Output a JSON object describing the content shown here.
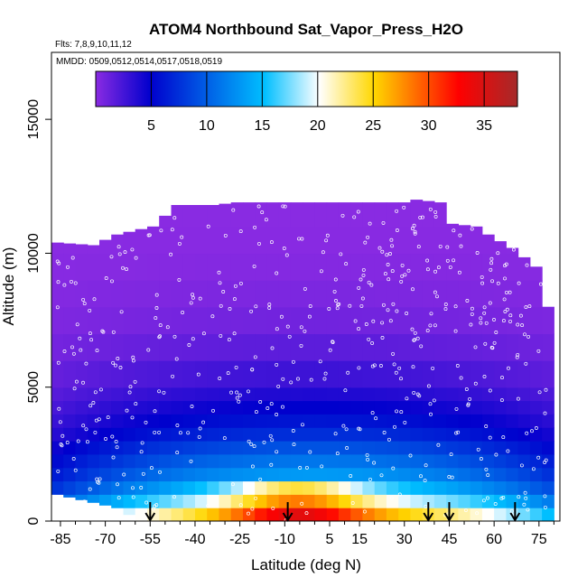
{
  "chart_data": {
    "type": "heatmap",
    "title": "ATOM4 Northbound Sat_Vapor_Press_H2O",
    "annotations": [
      "Flts: 7,8,9,10,11,12",
      "MMDD: 0509,0512,0514,0517,0518,0519"
    ],
    "xlabel": "Latitude (deg N)",
    "ylabel": "Altitude (m)",
    "xlim": [
      -88,
      82
    ],
    "ylim": [
      0,
      17500
    ],
    "x_ticks": [
      -85,
      -70,
      -55,
      -40,
      -25,
      -10,
      5,
      15,
      30,
      45,
      60,
      75
    ],
    "y_ticks": [
      0,
      5000,
      10000,
      15000
    ],
    "grid": false,
    "colorbar": {
      "position": "top-inside",
      "range": [
        0,
        38
      ],
      "ticks": [
        5,
        10,
        15,
        20,
        25,
        30,
        35
      ],
      "colors": [
        "#8a2be2",
        "#0000cd",
        "#00bfff",
        "#ffffff",
        "#ffd700",
        "#ff0000",
        "#a52a2a"
      ]
    },
    "lat_bins": [
      -86,
      -82,
      -78,
      -74,
      -70,
      -66,
      -62,
      -58,
      -54,
      -50,
      -46,
      -42,
      -38,
      -34,
      -30,
      -26,
      -22,
      -18,
      -14,
      -10,
      -6,
      -2,
      2,
      6,
      10,
      14,
      18,
      22,
      26,
      30,
      34,
      38,
      42,
      46,
      50,
      54,
      58,
      62,
      66,
      70,
      74,
      78
    ],
    "alt_bin_edges": [
      0,
      500,
      1000,
      1500,
      2000,
      2500,
      3000,
      3500,
      4000,
      4500,
      5000,
      6000,
      7000,
      8000,
      9000,
      10000,
      11000,
      12000,
      13000
    ],
    "alt_profile": [
      [
        0,
        27
      ],
      [
        500,
        21
      ],
      [
        1000,
        16
      ],
      [
        1500,
        13
      ],
      [
        2000,
        11
      ],
      [
        2500,
        9.5
      ],
      [
        3000,
        7.5
      ],
      [
        3500,
        6
      ],
      [
        4000,
        5
      ],
      [
        4500,
        4
      ],
      [
        5000,
        3
      ],
      [
        6000,
        2
      ],
      [
        7000,
        1
      ],
      [
        8000,
        0.6
      ],
      [
        9000,
        0.3
      ],
      [
        10000,
        0.1
      ],
      [
        12000,
        0
      ]
    ],
    "column_tops": [
      [
        -86,
        10400
      ],
      [
        -74,
        10300
      ],
      [
        -66,
        10700
      ],
      [
        -54,
        11000
      ],
      [
        -46,
        11800
      ],
      [
        -34,
        11800
      ],
      [
        -26,
        11900
      ],
      [
        -14,
        11900
      ],
      [
        -2,
        11900
      ],
      [
        10,
        11900
      ],
      [
        22,
        11900
      ],
      [
        30,
        11900
      ],
      [
        34,
        12000
      ],
      [
        42,
        11900
      ],
      [
        46,
        11100
      ],
      [
        54,
        11000
      ],
      [
        58,
        10700
      ],
      [
        66,
        10200
      ],
      [
        74,
        9500
      ],
      [
        78,
        8000
      ]
    ],
    "column_bottoms": [
      [
        -86,
        1000
      ],
      [
        -66,
        500
      ],
      [
        -58,
        0
      ],
      [
        78,
        0
      ]
    ],
    "flight_arrows_lat": [
      -55,
      -9,
      38,
      45,
      67
    ]
  }
}
